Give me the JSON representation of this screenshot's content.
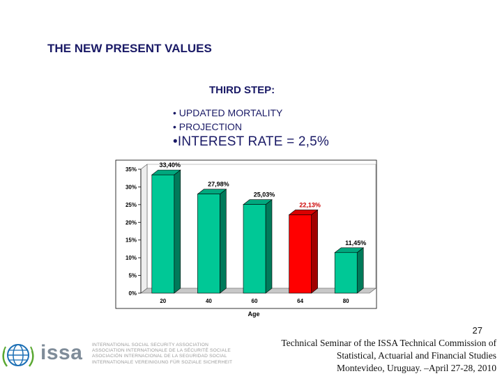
{
  "slide": {
    "title": "THE NEW PRESENT VALUES",
    "step_title": "THIRD STEP:",
    "bullets": [
      "• UPDATED MORTALITY",
      "• PROJECTION",
      "•INTEREST RATE = 2,5%"
    ]
  },
  "chart_data": {
    "type": "bar",
    "categories": [
      "20",
      "40",
      "60",
      "64",
      "80"
    ],
    "values": [
      33.4,
      27.98,
      25.03,
      22.13,
      11.45
    ],
    "value_labels": [
      "33,40%",
      "27,98%",
      "25,03%",
      "22,13%",
      "11,45%"
    ],
    "highlight_index": 3,
    "xlabel": "Age",
    "ylabel": "",
    "ylim": [
      0,
      35
    ],
    "yticks": [
      0,
      5,
      10,
      15,
      20,
      25,
      30,
      35
    ],
    "ytick_labels": [
      "0%",
      "5%",
      "10%",
      "15%",
      "20%",
      "25%",
      "30%",
      "35%"
    ],
    "grid": false,
    "colors": {
      "bar": "#00c896",
      "bar_highlight": "#ff0000",
      "highlight_label": "#cc0000"
    }
  },
  "footer": {
    "page_number": "27",
    "line1": "Technical Seminar of the ISSA Technical Commission of",
    "line2": "Statistical, Actuarial and Financial Studies",
    "line3": "Montevideo, Uruguay. –April 27-28, 2010"
  },
  "logo": {
    "icon": "globe-icon",
    "word": "issa",
    "names": [
      "INTERNATIONAL SOCIAL SECURITY ASSOCIATION",
      "ASSOCIATION INTERNATIONALE DE LA SÉCURITÉ SOCIALE",
      "ASOCIACIÓN INTERNACIONAL DE LA SEGURIDAD SOCIAL",
      "INTERNATIONALE VEREINIGUNG FÜR SOZIALE SICHERHEIT"
    ]
  }
}
